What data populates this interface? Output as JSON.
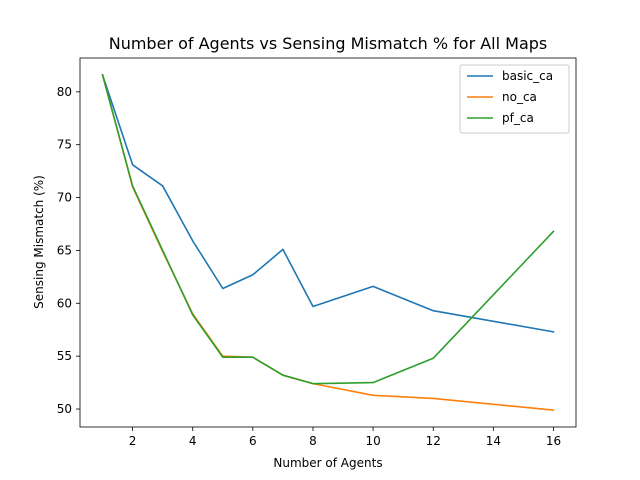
{
  "chart_data": {
    "type": "line",
    "title": "Number of Agents vs Sensing Mismatch % for All Maps",
    "xlabel": "Number of Agents",
    "ylabel": "Sensing Mismatch (%)",
    "xlim": [
      0.25,
      16.75
    ],
    "ylim": [
      48.3,
      83.2
    ],
    "xticks": [
      2,
      4,
      6,
      8,
      10,
      12,
      14,
      16
    ],
    "yticks": [
      50,
      55,
      60,
      65,
      70,
      75,
      80
    ],
    "legend": "top-right",
    "grid": false,
    "series": [
      {
        "name": "basic_ca",
        "color": "#1f77b4",
        "x": [
          1,
          2,
          3,
          4,
          5,
          6,
          7,
          8,
          10,
          12,
          16
        ],
        "y": [
          81.6,
          73.1,
          71.1,
          65.9,
          61.4,
          62.7,
          65.1,
          59.7,
          61.6,
          59.3,
          57.3
        ]
      },
      {
        "name": "no_ca",
        "color": "#ff7f0e",
        "x": [
          1,
          2,
          3,
          4,
          5,
          6,
          7,
          8,
          10,
          12,
          16
        ],
        "y": [
          81.6,
          71.0,
          64.9,
          59.0,
          55.0,
          54.9,
          53.2,
          52.4,
          51.3,
          51.0,
          49.9
        ]
      },
      {
        "name": "pf_ca",
        "color": "#2ca02c",
        "x": [
          1,
          2,
          3,
          4,
          5,
          6,
          7,
          8,
          10,
          12,
          16
        ],
        "y": [
          81.6,
          71.1,
          65.0,
          58.9,
          54.9,
          54.9,
          53.2,
          52.4,
          52.5,
          54.8,
          66.8
        ]
      }
    ]
  }
}
